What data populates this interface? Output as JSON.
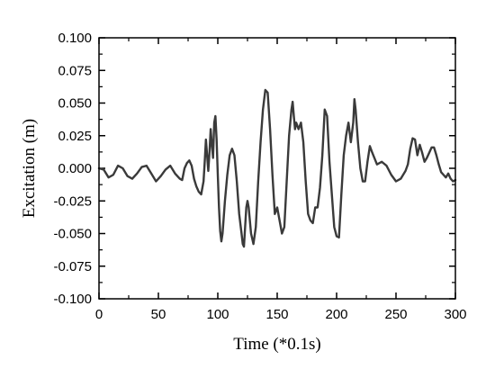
{
  "chart_data": {
    "type": "line",
    "title": "",
    "xlabel": "Time (*0.1s)",
    "ylabel": "Excitation (m)",
    "xlim": [
      0,
      300
    ],
    "ylim": [
      -0.1,
      0.1
    ],
    "x_ticks": [
      0,
      50,
      100,
      150,
      200,
      250,
      300
    ],
    "x_tick_labels": [
      "0",
      "50",
      "100",
      "150",
      "200",
      "250",
      "300"
    ],
    "y_ticks": [
      -0.1,
      -0.075,
      -0.05,
      -0.025,
      0,
      0.025,
      0.05,
      0.075,
      0.1
    ],
    "y_tick_labels": [
      "-0.100",
      "-0.075",
      "-0.050",
      "-0.025",
      "0.000",
      "0.025",
      "0.050",
      "0.075",
      "0.100"
    ],
    "grid": false,
    "series": [
      {
        "color": "#3a3a3a",
        "x": [
          0,
          4,
          8,
          12,
          16,
          20,
          24,
          28,
          32,
          36,
          40,
          44,
          48,
          52,
          56,
          60,
          64,
          68,
          70,
          72,
          74,
          76,
          78,
          80,
          82,
          84,
          86,
          88,
          89,
          90,
          91,
          92,
          93,
          94,
          95,
          96,
          97,
          98,
          99,
          100,
          101,
          102,
          103,
          104,
          106,
          108,
          110,
          112,
          114,
          116,
          118,
          120,
          121,
          122,
          123,
          124,
          125,
          126,
          128,
          130,
          132,
          134,
          136,
          138,
          140,
          142,
          144,
          146,
          148,
          150,
          152,
          154,
          156,
          158,
          160,
          162,
          163,
          164,
          165,
          166,
          168,
          170,
          172,
          174,
          176,
          178,
          180,
          182,
          184,
          186,
          188,
          190,
          192,
          194,
          196,
          198,
          200,
          202,
          204,
          206,
          208,
          210,
          212,
          214,
          215,
          216,
          218,
          220,
          222,
          224,
          226,
          228,
          230,
          234,
          238,
          242,
          246,
          250,
          254,
          258,
          260,
          262,
          264,
          266,
          268,
          270,
          272,
          274,
          276,
          278,
          280,
          282,
          284,
          286,
          288,
          290,
          292,
          294,
          296,
          298,
          300
        ],
        "y": [
          0.0,
          -0.001,
          -0.007,
          -0.005,
          0.002,
          0.0,
          -0.006,
          -0.008,
          -0.004,
          0.001,
          0.002,
          -0.004,
          -0.01,
          -0.006,
          -0.001,
          0.002,
          -0.004,
          -0.008,
          -0.009,
          0.0,
          0.004,
          0.006,
          0.002,
          -0.008,
          -0.014,
          -0.018,
          -0.02,
          -0.01,
          0.005,
          0.022,
          0.01,
          -0.002,
          0.012,
          0.03,
          0.018,
          0.008,
          0.035,
          0.04,
          0.022,
          -0.005,
          -0.03,
          -0.048,
          -0.056,
          -0.05,
          -0.025,
          -0.005,
          0.01,
          0.015,
          0.01,
          -0.01,
          -0.035,
          -0.05,
          -0.058,
          -0.06,
          -0.045,
          -0.03,
          -0.025,
          -0.03,
          -0.05,
          -0.058,
          -0.045,
          -0.01,
          0.02,
          0.045,
          0.06,
          0.058,
          0.03,
          -0.005,
          -0.035,
          -0.03,
          -0.04,
          -0.05,
          -0.045,
          -0.01,
          0.025,
          0.045,
          0.051,
          0.04,
          0.03,
          0.035,
          0.03,
          0.035,
          0.02,
          -0.01,
          -0.035,
          -0.04,
          -0.042,
          -0.03,
          -0.03,
          -0.015,
          0.01,
          0.045,
          0.04,
          0.005,
          -0.02,
          -0.045,
          -0.052,
          -0.053,
          -0.02,
          0.01,
          0.025,
          0.035,
          0.02,
          0.035,
          0.053,
          0.045,
          0.02,
          0.0,
          -0.01,
          -0.01,
          0.005,
          0.017,
          0.012,
          0.003,
          0.005,
          0.002,
          -0.005,
          -0.01,
          -0.008,
          -0.002,
          0.003,
          0.015,
          0.023,
          0.022,
          0.01,
          0.018,
          0.012,
          0.005,
          0.008,
          0.012,
          0.016,
          0.016,
          0.01,
          0.003,
          -0.003,
          -0.005,
          -0.007,
          -0.004,
          -0.008,
          -0.01,
          -0.009
        ]
      }
    ]
  }
}
